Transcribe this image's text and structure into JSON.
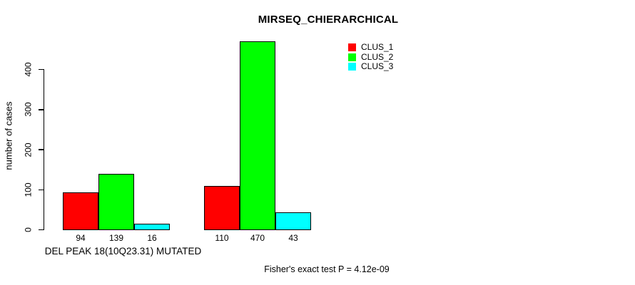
{
  "title": "MIRSEQ_CHIERARCHICAL",
  "y_axis": {
    "label": "number of cases"
  },
  "x_axis": {
    "label": "DEL PEAK 18(10Q23.31) MUTATED"
  },
  "footer_note": "Fisher's exact test P = 4.12e-09",
  "legend": {
    "items": [
      {
        "label": "CLUS_1",
        "color": "#ff0000"
      },
      {
        "label": "CLUS_2",
        "color": "#00ff00"
      },
      {
        "label": "CLUS_3",
        "color": "#00ffff"
      }
    ]
  },
  "chart_data": {
    "type": "bar",
    "title": "MIRSEQ_CHIERARCHICAL",
    "xlabel": "DEL PEAK 18(10Q23.31) MUTATED",
    "ylabel": "number of cases",
    "ylim": [
      0,
      470
    ],
    "yticks": [
      0,
      100,
      200,
      300,
      400
    ],
    "grid": false,
    "legend_position": "top-right",
    "group_count": 2,
    "series": [
      {
        "name": "CLUS_1",
        "color": "#ff0000",
        "values": [
          94,
          110
        ]
      },
      {
        "name": "CLUS_2",
        "color": "#00ff00",
        "values": [
          139,
          470
        ]
      },
      {
        "name": "CLUS_3",
        "color": "#00ffff",
        "values": [
          16,
          43
        ]
      }
    ],
    "show_bar_value_labels": true
  }
}
